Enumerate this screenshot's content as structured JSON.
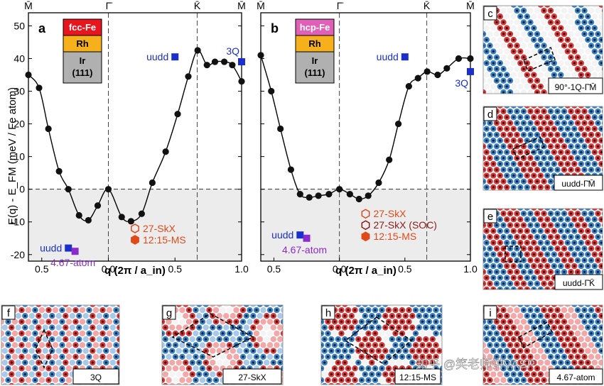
{
  "figure": {
    "ylabel": "E(q) - E_FM (meV / Fe atom)",
    "xlabel": "q (2π / a_in)",
    "top_labels": [
      "M̄",
      "Γ̄",
      "K̄",
      "M̄"
    ],
    "x_ticks": [
      "0.5",
      "0.0",
      "0.5",
      "1.0"
    ],
    "y_ticks": [
      "-20",
      "-10",
      "0",
      "10",
      "20",
      "30",
      "40",
      "50"
    ],
    "watermark": "知乎 @笑老师讲VASP"
  },
  "chart_data": [
    {
      "panel": "a",
      "type": "line",
      "layers": [
        {
          "label": "fcc-Fe",
          "color": "#e8141e"
        },
        {
          "label": "Rh",
          "color": "#f5b01c"
        },
        {
          "label": "Ir\n(111)",
          "color": "#b0b0b0"
        }
      ],
      "ylim": [
        -22,
        54
      ],
      "points": [
        [
          -0.6,
          35
        ],
        [
          -0.52,
          31
        ],
        [
          -0.45,
          18.5
        ],
        [
          -0.37,
          5.5
        ],
        [
          -0.3,
          0
        ],
        [
          -0.22,
          -8
        ],
        [
          -0.15,
          -9.5
        ],
        [
          -0.08,
          -5
        ],
        [
          0.0,
          0
        ],
        [
          0.1,
          -8.5
        ],
        [
          0.17,
          -9.8
        ],
        [
          0.25,
          -7.5
        ],
        [
          0.33,
          2
        ],
        [
          0.43,
          11.5
        ],
        [
          0.52,
          23
        ],
        [
          0.6,
          34.5
        ],
        [
          0.67,
          42.5
        ],
        [
          0.74,
          38
        ],
        [
          0.8,
          39
        ],
        [
          0.87,
          39
        ],
        [
          0.93,
          38
        ],
        [
          1.0,
          33
        ]
      ],
      "markers": [
        {
          "label": "uudd",
          "x": 0.5,
          "y": 40.5,
          "color": "#1a2fcc",
          "shape": "square"
        },
        {
          "label": "3Q",
          "x": 1.0,
          "y": 39,
          "color": "#1a2fcc",
          "shape": "square"
        },
        {
          "label": "uudd",
          "x": -0.3,
          "y": -18,
          "color": "#1a2fcc",
          "shape": "square"
        },
        {
          "label": "4.67-atom",
          "x": -0.25,
          "y": -19,
          "color": "#8a2bd0",
          "shape": "square"
        }
      ],
      "legend": [
        {
          "label": "27-SkX",
          "color": "#e04a1a",
          "shape": "hexagon-open"
        },
        {
          "label": "12:15-MS",
          "color": "#e04a1a",
          "shape": "hexagon-filled"
        }
      ]
    },
    {
      "panel": "b",
      "type": "line",
      "layers": [
        {
          "label": "hcp-Fe",
          "color": "#e060b8"
        },
        {
          "label": "Rh",
          "color": "#f5b01c"
        },
        {
          "label": "Ir\n(111)",
          "color": "#b0b0b0"
        }
      ],
      "ylim": [
        -22,
        54
      ],
      "points": [
        [
          -0.6,
          41
        ],
        [
          -0.52,
          30
        ],
        [
          -0.45,
          18.5
        ],
        [
          -0.37,
          6
        ],
        [
          -0.3,
          -1.5
        ],
        [
          -0.23,
          -2.5
        ],
        [
          -0.16,
          -2
        ],
        [
          -0.08,
          -1.5
        ],
        [
          0.0,
          0
        ],
        [
          0.08,
          -1.5
        ],
        [
          0.15,
          -3
        ],
        [
          0.22,
          -2
        ],
        [
          0.3,
          2
        ],
        [
          0.38,
          9
        ],
        [
          0.45,
          20
        ],
        [
          0.53,
          31.5
        ],
        [
          0.6,
          34
        ],
        [
          0.67,
          36
        ],
        [
          0.75,
          35
        ],
        [
          0.82,
          37
        ],
        [
          0.91,
          40
        ],
        [
          1.0,
          40
        ]
      ],
      "markers": [
        {
          "label": "uudd",
          "x": 0.5,
          "y": 40.5,
          "color": "#1a2fcc",
          "shape": "square"
        },
        {
          "label": "3Q",
          "x": 1.0,
          "y": 36,
          "color": "#1a2fcc",
          "shape": "square"
        },
        {
          "label": "uudd",
          "x": -0.3,
          "y": -14,
          "color": "#1a2fcc",
          "shape": "square"
        },
        {
          "label": "4.67-atom",
          "x": -0.25,
          "y": -15,
          "color": "#8a2bd0",
          "shape": "square"
        }
      ],
      "legend": [
        {
          "label": "27-SkX",
          "color": "#e04a1a",
          "shape": "hexagon-open"
        },
        {
          "label": "27-SkX (SOC)",
          "color": "#8b1a1a",
          "shape": "hexagon-open"
        },
        {
          "label": "12:15-MS",
          "color": "#e04a1a",
          "shape": "hexagon-filled"
        }
      ]
    }
  ],
  "spin_panels": [
    {
      "letter": "c",
      "caption": "90°-1Q-Γ̄M̄"
    },
    {
      "letter": "d",
      "caption": "uudd-Γ̄M̄"
    },
    {
      "letter": "e",
      "caption": "uudd-Γ̄K̄"
    },
    {
      "letter": "f",
      "caption": "3Q"
    },
    {
      "letter": "g",
      "caption": "27-SkX"
    },
    {
      "letter": "h",
      "caption": "12:15-MS"
    },
    {
      "letter": "i",
      "caption": "4.67-atom"
    }
  ]
}
